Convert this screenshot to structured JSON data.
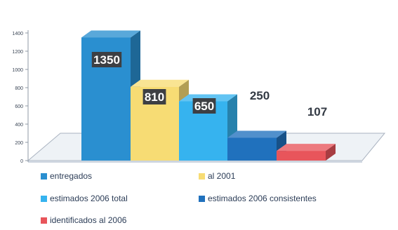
{
  "chart_data": {
    "type": "bar",
    "style": "3d-column",
    "categories": [
      "entregados",
      "al 2001",
      "estimados 2006 total",
      "estimados 2006 consistentes",
      "identificados al 2006"
    ],
    "values": [
      1350,
      810,
      650,
      250,
      107
    ],
    "data_labels": [
      "1350",
      "810",
      "650",
      "250",
      "107"
    ],
    "y_ticks": [
      "0",
      "200",
      "400",
      "600",
      "800",
      "1000",
      "1200",
      "1400"
    ],
    "ylim": [
      0,
      1400
    ],
    "colors": [
      "#2a8fd0",
      "#f7dc74",
      "#36b3ef",
      "#2071bd",
      "#e8555b"
    ],
    "label_box_color": "#3d3f43",
    "legend_position": "bottom",
    "title": "",
    "xlabel": "",
    "ylabel": ""
  }
}
